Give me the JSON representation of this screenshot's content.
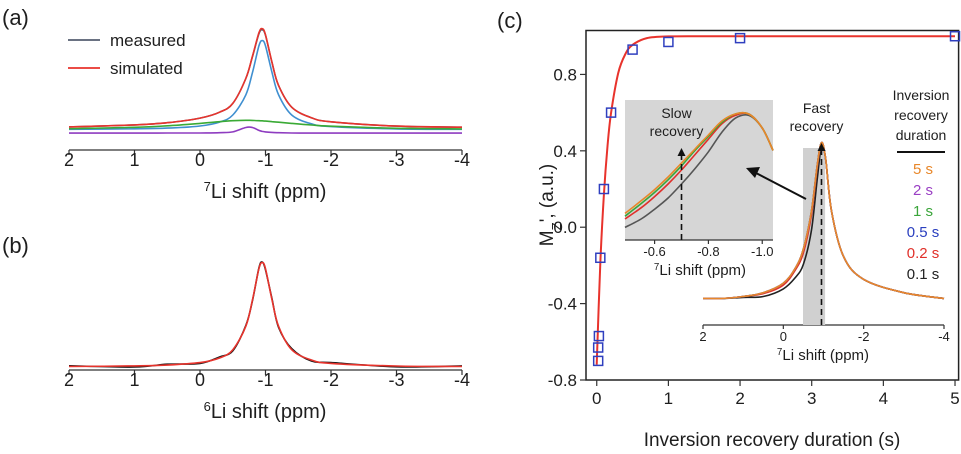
{
  "chart_data": [
    {
      "type": "line",
      "panel_label": "(a)",
      "xlabel_sup": "7",
      "xlabel": "Li shift (ppm)",
      "xlim": [
        2,
        -4
      ],
      "xticks": [
        2,
        1,
        0,
        -1,
        -2,
        -3,
        -4
      ],
      "ylim": [
        0,
        1
      ],
      "x": [
        2,
        1,
        0.5,
        0,
        -0.3,
        -0.5,
        -0.7,
        -0.8,
        -0.9,
        -0.95,
        -1.0,
        -1.1,
        -1.2,
        -1.4,
        -1.7,
        -2,
        -3,
        -4
      ],
      "series": [
        {
          "color": "#3f8fd0",
          "values": [
            0.153,
            0.157,
            0.162,
            0.178,
            0.207,
            0.259,
            0.408,
            0.572,
            0.771,
            0.81,
            0.771,
            0.572,
            0.408,
            0.259,
            0.194,
            0.173,
            0.156,
            0.153
          ]
        },
        {
          "color": "#3aaa35",
          "values": [
            0.158,
            0.168,
            0.179,
            0.197,
            0.21,
            0.217,
            0.22,
            0.219,
            0.217,
            0.216,
            0.214,
            0.21,
            0.206,
            0.197,
            0.185,
            0.176,
            0.161,
            0.156
          ]
        },
        {
          "color": "#8e3cc0",
          "values": [
            0.125,
            0.125,
            0.126,
            0.126,
            0.128,
            0.134,
            0.167,
            0.167,
            0.145,
            0.138,
            0.134,
            0.13,
            0.128,
            0.126,
            0.125,
            0.125,
            0.125,
            0.125
          ]
        },
        {
          "name": "measured",
          "color": "#555e70",
          "values": [
            0.171,
            0.186,
            0.202,
            0.236,
            0.28,
            0.345,
            0.53,
            0.69,
            0.86,
            0.89,
            0.85,
            0.645,
            0.477,
            0.317,
            0.239,
            0.209,
            0.177,
            0.169
          ]
        },
        {
          "name": "simulated",
          "color": "#e8332c",
          "values": [
            0.171,
            0.186,
            0.202,
            0.236,
            0.28,
            0.345,
            0.53,
            0.693,
            0.868,
            0.899,
            0.854,
            0.647,
            0.477,
            0.317,
            0.239,
            0.209,
            0.177,
            0.169
          ]
        }
      ]
    },
    {
      "type": "line",
      "panel_label": "(b)",
      "xlabel_sup": "6",
      "xlabel": "Li shift (ppm)",
      "xlim": [
        2,
        -4
      ],
      "xticks": [
        2,
        1,
        0,
        -1,
        -2,
        -3,
        -4
      ],
      "ylim": [
        0,
        1
      ],
      "x": [
        2,
        1,
        0.5,
        0,
        -0.3,
        -0.5,
        -0.7,
        -0.8,
        -0.9,
        -0.95,
        -1.0,
        -1.1,
        -1.2,
        -1.4,
        -1.7,
        -2,
        -3,
        -4
      ],
      "series": [
        {
          "color": "#1a1a1a",
          "values": [
            0.035,
            0.025,
            0.048,
            0.055,
            0.108,
            0.16,
            0.37,
            0.575,
            0.85,
            0.9,
            0.835,
            0.59,
            0.355,
            0.178,
            0.075,
            0.062,
            0.027,
            0.034
          ]
        },
        {
          "color": "#e8332c",
          "values": [
            0.029,
            0.034,
            0.041,
            0.062,
            0.1,
            0.169,
            0.364,
            0.582,
            0.844,
            0.895,
            0.844,
            0.582,
            0.364,
            0.169,
            0.083,
            0.055,
            0.033,
            0.029
          ]
        }
      ]
    },
    {
      "type": "scatter",
      "panel_label": "(c)",
      "xlabel": "Inversion recovery duration (s)",
      "ylabel": [
        "M",
        "Z",
        "', (a.u.)"
      ],
      "xlim": [
        -0.15,
        5.05
      ],
      "xticks": [
        0,
        1,
        2,
        3,
        4,
        5
      ],
      "ylim": [
        -0.8,
        1.03
      ],
      "yticks": [
        -0.8,
        -0.4,
        {
          "value": 0,
          "label": "0.0"
        },
        0.4,
        0.8
      ],
      "series": [
        {
          "color": "#e8332c",
          "x": [
            0,
            0.05,
            0.1,
            0.15,
            0.2,
            0.3,
            0.4,
            0.5,
            0.7,
            1,
            1.5,
            2,
            3,
            4,
            5
          ],
          "values": [
            -0.72,
            -0.19,
            0.171,
            0.424,
            0.6,
            0.807,
            0.907,
            0.955,
            0.99,
            0.999,
            1,
            1,
            1,
            1,
            1
          ]
        },
        {
          "color": "#2f3fbf",
          "marker": "square",
          "x": [
            0.02,
            0.02,
            0.03,
            0.05,
            0.1,
            0.2,
            0.5,
            1,
            2,
            5
          ],
          "values": [
            -0.7,
            -0.63,
            -0.57,
            -0.16,
            0.2,
            0.6,
            0.93,
            0.97,
            0.99,
            1.0
          ]
        }
      ]
    },
    {
      "type": "line",
      "xlabel_sup": "7",
      "xlabel": "Li shift (ppm)",
      "xlim": [
        2,
        -4
      ],
      "xticks": [
        2,
        0,
        -2,
        -4
      ],
      "ylim": [
        0,
        1
      ],
      "dashed_x": -0.95,
      "annotation": [
        "Fast",
        "recovery"
      ],
      "legend_title": [
        "Inversion",
        "recovery",
        "duration"
      ],
      "x": [
        2,
        1.5,
        1,
        0.5,
        0,
        -0.3,
        -0.5,
        -0.7,
        -0.85,
        -0.95,
        -1.05,
        -1.2,
        -1.5,
        -2,
        -3,
        -4
      ],
      "series": [
        {
          "name": "5 s",
          "color": "#e8872a",
          "values": [
            0.14,
            0.14,
            0.15,
            0.17,
            0.22,
            0.3,
            0.4,
            0.6,
            0.85,
            0.96,
            0.88,
            0.6,
            0.36,
            0.24,
            0.17,
            0.14
          ]
        },
        {
          "name": "2 s",
          "color": "#9a3fc4",
          "values": [
            0.14,
            0.14,
            0.15,
            0.17,
            0.22,
            0.3,
            0.4,
            0.6,
            0.85,
            0.96,
            0.88,
            0.6,
            0.36,
            0.24,
            0.17,
            0.14
          ]
        },
        {
          "name": "1 s",
          "color": "#3aa53a",
          "values": [
            0.14,
            0.14,
            0.15,
            0.17,
            0.22,
            0.3,
            0.4,
            0.6,
            0.85,
            0.96,
            0.88,
            0.6,
            0.36,
            0.24,
            0.17,
            0.14
          ]
        },
        {
          "name": "0.5 s",
          "color": "#2a3fbf",
          "values": [
            0.14,
            0.14,
            0.15,
            0.17,
            0.22,
            0.3,
            0.4,
            0.6,
            0.85,
            0.96,
            0.88,
            0.6,
            0.36,
            0.24,
            0.17,
            0.14
          ]
        },
        {
          "name": "0.2 s",
          "color": "#e0302a",
          "values": [
            0.14,
            0.14,
            0.15,
            0.165,
            0.21,
            0.29,
            0.38,
            0.58,
            0.84,
            0.96,
            0.88,
            0.6,
            0.36,
            0.24,
            0.17,
            0.14
          ]
        },
        {
          "name": "0.1 s",
          "color": "#222222",
          "values": [
            0.14,
            0.14,
            0.145,
            0.15,
            0.19,
            0.25,
            0.32,
            0.5,
            0.78,
            0.94,
            0.88,
            0.6,
            0.36,
            0.24,
            0.17,
            0.14
          ]
        }
      ]
    },
    {
      "type": "line",
      "xlabel_sup": "7",
      "xlabel": "Li shift (ppm)",
      "xlim": [
        -0.49,
        -1.04
      ],
      "xticks": [
        -0.6,
        -0.8,
        {
          "value": -1,
          "label": "-1.0"
        }
      ],
      "ylim": [
        0,
        1
      ],
      "dashed_x": -0.7,
      "annotation": [
        "Slow",
        "recovery"
      ],
      "x": [
        -0.49,
        -0.55,
        -0.6,
        -0.65,
        -0.7,
        -0.75,
        -0.8,
        -0.85,
        -0.9,
        -0.95,
        -1.0,
        -1.04
      ],
      "series": [
        {
          "color": "#555555",
          "values": [
            0.09,
            0.15,
            0.22,
            0.3,
            0.4,
            0.51,
            0.63,
            0.77,
            0.87,
            0.89,
            0.8,
            0.64
          ]
        },
        {
          "color": "#e0302a",
          "values": [
            0.15,
            0.23,
            0.31,
            0.4,
            0.5,
            0.61,
            0.72,
            0.83,
            0.89,
            0.9,
            0.8,
            0.64
          ]
        },
        {
          "color": "#3aa53a",
          "values": [
            0.17,
            0.26,
            0.34,
            0.43,
            0.53,
            0.64,
            0.74,
            0.84,
            0.9,
            0.9,
            0.8,
            0.64
          ]
        },
        {
          "color": "#e8872a",
          "values": [
            0.19,
            0.28,
            0.36,
            0.45,
            0.55,
            0.65,
            0.75,
            0.85,
            0.9,
            0.9,
            0.8,
            0.64
          ]
        }
      ]
    }
  ]
}
